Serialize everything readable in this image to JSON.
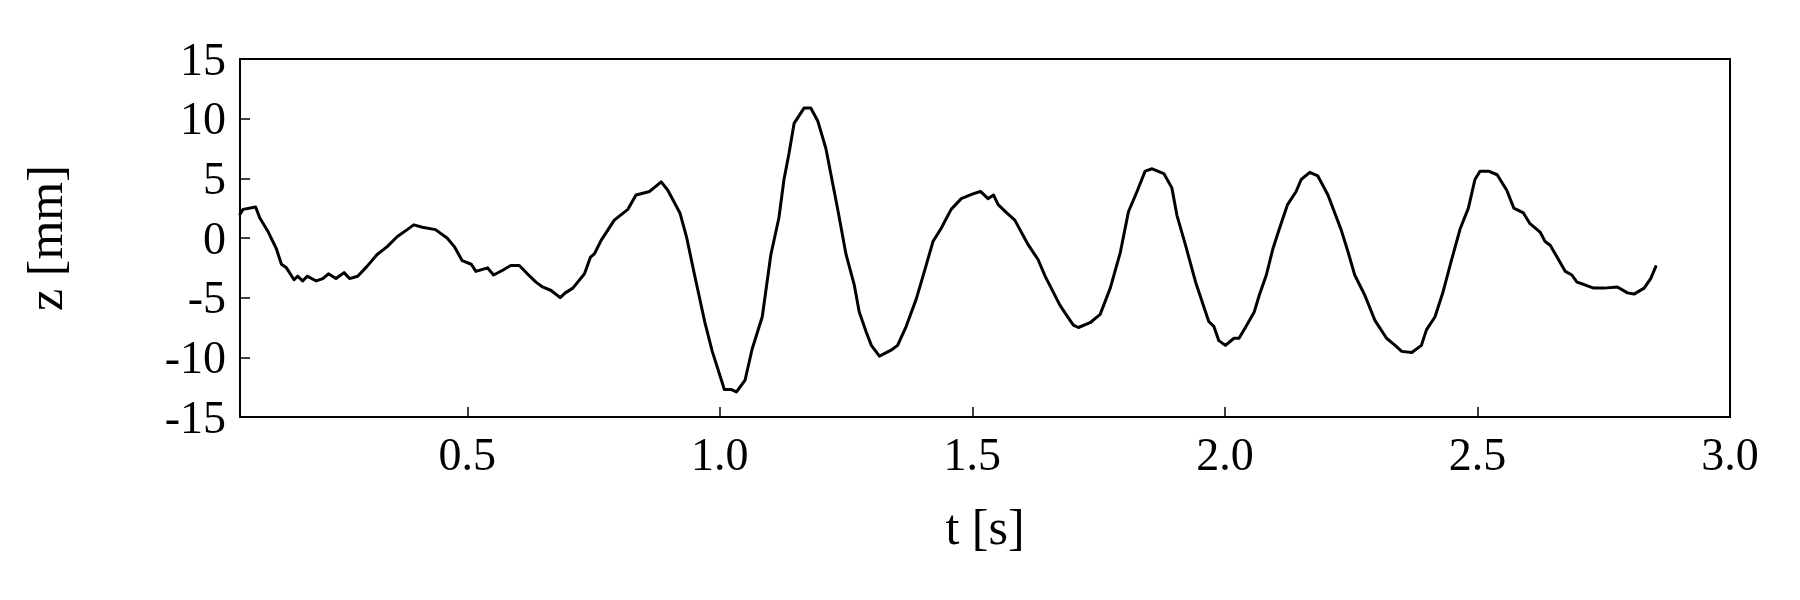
{
  "chart_data": {
    "type": "line",
    "xlabel": "t [s]",
    "ylabel": "z [mm]",
    "xlim": [
      0.05,
      3.0
    ],
    "ylim": [
      -15,
      15
    ],
    "xticks": [
      0.5,
      {
        "value": 1,
        "label": "1.0"
      },
      1.5,
      {
        "value": 2,
        "label": "2.0"
      },
      2.5,
      {
        "value": 3,
        "label": "3.0"
      }
    ],
    "yticks": [
      -15,
      -10,
      -5,
      0,
      5,
      10,
      15
    ],
    "grid": false,
    "marker": "none",
    "line_style": "solid",
    "series": [
      {
        "color": "#000000",
        "x": [
          0.05,
          0.056,
          0.081,
          0.089,
          0.106,
          0.122,
          0.132,
          0.142,
          0.157,
          0.164,
          0.174,
          0.183,
          0.201,
          0.214,
          0.225,
          0.24,
          0.256,
          0.267,
          0.283,
          0.301,
          0.321,
          0.342,
          0.361,
          0.381,
          0.394,
          0.411,
          0.437,
          0.46,
          0.474,
          0.49,
          0.508,
          0.517,
          0.54,
          0.552,
          0.57,
          0.586,
          0.603,
          0.619,
          0.636,
          0.649,
          0.666,
          0.684,
          0.694,
          0.709,
          0.732,
          0.744,
          0.752,
          0.765,
          0.791,
          0.818,
          0.834,
          0.861,
          0.884,
          0.897,
          0.921,
          0.934,
          0.95,
          0.97,
          0.985,
          1.009,
          1.023,
          1.033,
          1.05,
          1.064,
          1.084,
          1.101,
          1.117,
          1.127,
          1.137,
          1.147,
          1.167,
          1.18,
          1.194,
          1.21,
          1.233,
          1.25,
          1.266,
          1.276,
          1.29,
          1.3,
          1.316,
          1.339,
          1.352,
          1.369,
          1.389,
          1.405,
          1.422,
          1.438,
          1.458,
          1.478,
          1.501,
          1.516,
          1.531,
          1.542,
          1.551,
          1.568,
          1.584,
          1.611,
          1.63,
          1.644,
          1.673,
          1.687,
          1.7,
          1.71,
          1.733,
          1.753,
          1.773,
          1.793,
          1.809,
          1.826,
          1.842,
          1.856,
          1.879,
          1.895,
          1.905,
          1.922,
          1.942,
          1.968,
          1.978,
          1.988,
          2.001,
          2.018,
          2.028,
          2.042,
          2.058,
          2.068,
          2.082,
          2.095,
          2.108,
          2.124,
          2.141,
          2.151,
          2.168,
          2.184,
          2.204,
          2.23,
          2.244,
          2.257,
          2.277,
          2.297,
          2.32,
          2.337,
          2.35,
          2.37,
          2.389,
          2.399,
          2.416,
          2.432,
          2.449,
          2.466,
          2.482,
          2.495,
          2.505,
          2.522,
          2.539,
          2.558,
          2.572,
          2.591,
          2.604,
          2.624,
          2.634,
          2.644,
          2.674,
          2.687,
          2.697,
          2.711,
          2.73,
          2.75,
          2.777,
          2.797,
          2.81,
          2.83,
          2.843,
          2.853
        ],
        "values": [
          2.0,
          2.4,
          2.6,
          1.7,
          0.5,
          -0.9,
          -2.2,
          -2.5,
          -3.5,
          -3.2,
          -3.6,
          -3.2,
          -3.6,
          -3.4,
          -3.0,
          -3.4,
          -2.9,
          -3.4,
          -3.2,
          -2.4,
          -1.4,
          -0.7,
          0.1,
          0.7,
          1.1,
          0.9,
          0.7,
          0.0,
          -0.7,
          -1.9,
          -2.2,
          -2.8,
          -2.5,
          -3.1,
          -2.7,
          -2.3,
          -2.3,
          -3.0,
          -3.7,
          -4.1,
          -4.4,
          -5.0,
          -4.6,
          -4.2,
          -3.0,
          -1.6,
          -1.3,
          -0.2,
          1.5,
          2.4,
          3.6,
          3.9,
          4.7,
          4.0,
          2.1,
          0.1,
          -3.1,
          -7.0,
          -9.5,
          -12.7,
          -12.7,
          -12.9,
          -11.9,
          -9.3,
          -6.6,
          -1.4,
          1.7,
          4.9,
          7.1,
          9.6,
          10.9,
          10.9,
          9.8,
          7.5,
          2.5,
          -1.4,
          -3.9,
          -6.2,
          -7.9,
          -9.0,
          -9.9,
          -9.4,
          -9.0,
          -7.4,
          -5.1,
          -2.8,
          -0.3,
          0.8,
          2.4,
          3.3,
          3.7,
          3.9,
          3.3,
          3.6,
          2.8,
          2.1,
          1.5,
          -0.6,
          -1.8,
          -3.2,
          -5.6,
          -6.5,
          -7.3,
          -7.5,
          -7.1,
          -6.4,
          -4.2,
          -1.2,
          2.2,
          3.9,
          5.6,
          5.8,
          5.4,
          4.2,
          1.9,
          -0.6,
          -3.7,
          -7.0,
          -7.4,
          -8.6,
          -9.0,
          -8.4,
          -8.4,
          -7.4,
          -6.2,
          -4.8,
          -3.1,
          -0.9,
          0.8,
          2.8,
          3.9,
          4.9,
          5.5,
          5.2,
          3.6,
          0.7,
          -1.2,
          -3.1,
          -4.8,
          -6.9,
          -8.4,
          -9.0,
          -9.5,
          -9.6,
          -9.0,
          -7.7,
          -6.6,
          -4.5,
          -1.8,
          0.8,
          2.5,
          4.9,
          5.6,
          5.6,
          5.3,
          4.0,
          2.5,
          2.1,
          1.2,
          0.5,
          -0.3,
          -0.6,
          -2.8,
          -3.1,
          -3.7,
          -3.9,
          -4.2,
          -4.2,
          -4.1,
          -4.6,
          -4.7,
          -4.2,
          -3.4,
          -2.4
        ]
      }
    ]
  }
}
